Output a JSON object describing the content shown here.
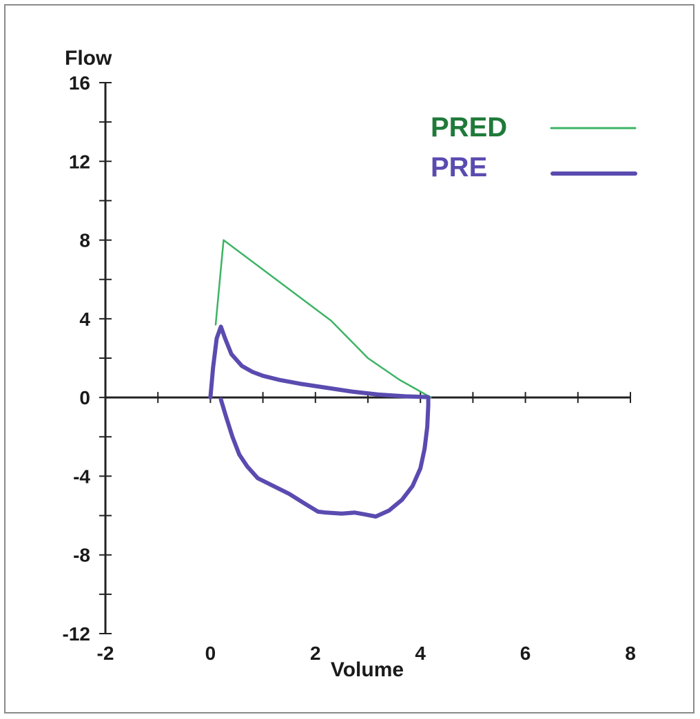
{
  "chart_data": {
    "type": "line",
    "xlabel": "Volume",
    "ylabel": "Flow",
    "xlim": [
      -2,
      8
    ],
    "ylim": [
      -12,
      16
    ],
    "x_ticks": [
      -2,
      0,
      2,
      4,
      6,
      8
    ],
    "y_ticks": [
      16,
      12,
      8,
      4,
      0,
      -4,
      -8,
      -12
    ],
    "x_minor_step": 1,
    "y_minor_step": 2,
    "grid": false,
    "legend_position": "top-right",
    "series": [
      {
        "name": "PRED",
        "color": "#3cb464",
        "points": [
          [
            0.1,
            3.7
          ],
          [
            0.25,
            8.0
          ],
          [
            0.8,
            6.9
          ],
          [
            1.5,
            5.5
          ],
          [
            2.3,
            3.9
          ],
          [
            3.0,
            2.0
          ],
          [
            3.6,
            0.9
          ],
          [
            4.2,
            0.0
          ]
        ]
      },
      {
        "name": "PRE",
        "color": "#5a4bb0",
        "points": [
          [
            0.0,
            0.0
          ],
          [
            0.05,
            1.5
          ],
          [
            0.12,
            3.0
          ],
          [
            0.2,
            3.6
          ],
          [
            0.28,
            3.0
          ],
          [
            0.4,
            2.2
          ],
          [
            0.6,
            1.6
          ],
          [
            0.8,
            1.3
          ],
          [
            1.0,
            1.1
          ],
          [
            1.3,
            0.9
          ],
          [
            1.7,
            0.7
          ],
          [
            2.2,
            0.5
          ],
          [
            2.7,
            0.3
          ],
          [
            3.2,
            0.15
          ],
          [
            3.7,
            0.06
          ],
          [
            4.15,
            0.02
          ],
          [
            4.15,
            -0.4
          ],
          [
            4.13,
            -1.5
          ],
          [
            4.08,
            -2.6
          ],
          [
            4.0,
            -3.6
          ],
          [
            3.85,
            -4.5
          ],
          [
            3.65,
            -5.2
          ],
          [
            3.4,
            -5.75
          ],
          [
            3.15,
            -6.05
          ],
          [
            2.95,
            -5.95
          ],
          [
            2.75,
            -5.85
          ],
          [
            2.5,
            -5.9
          ],
          [
            2.2,
            -5.85
          ],
          [
            2.05,
            -5.8
          ],
          [
            1.8,
            -5.4
          ],
          [
            1.5,
            -4.9
          ],
          [
            1.2,
            -4.5
          ],
          [
            0.9,
            -4.1
          ],
          [
            0.7,
            -3.5
          ],
          [
            0.55,
            -2.9
          ],
          [
            0.42,
            -2.0
          ],
          [
            0.3,
            -1.0
          ],
          [
            0.2,
            -0.1
          ]
        ]
      }
    ]
  }
}
